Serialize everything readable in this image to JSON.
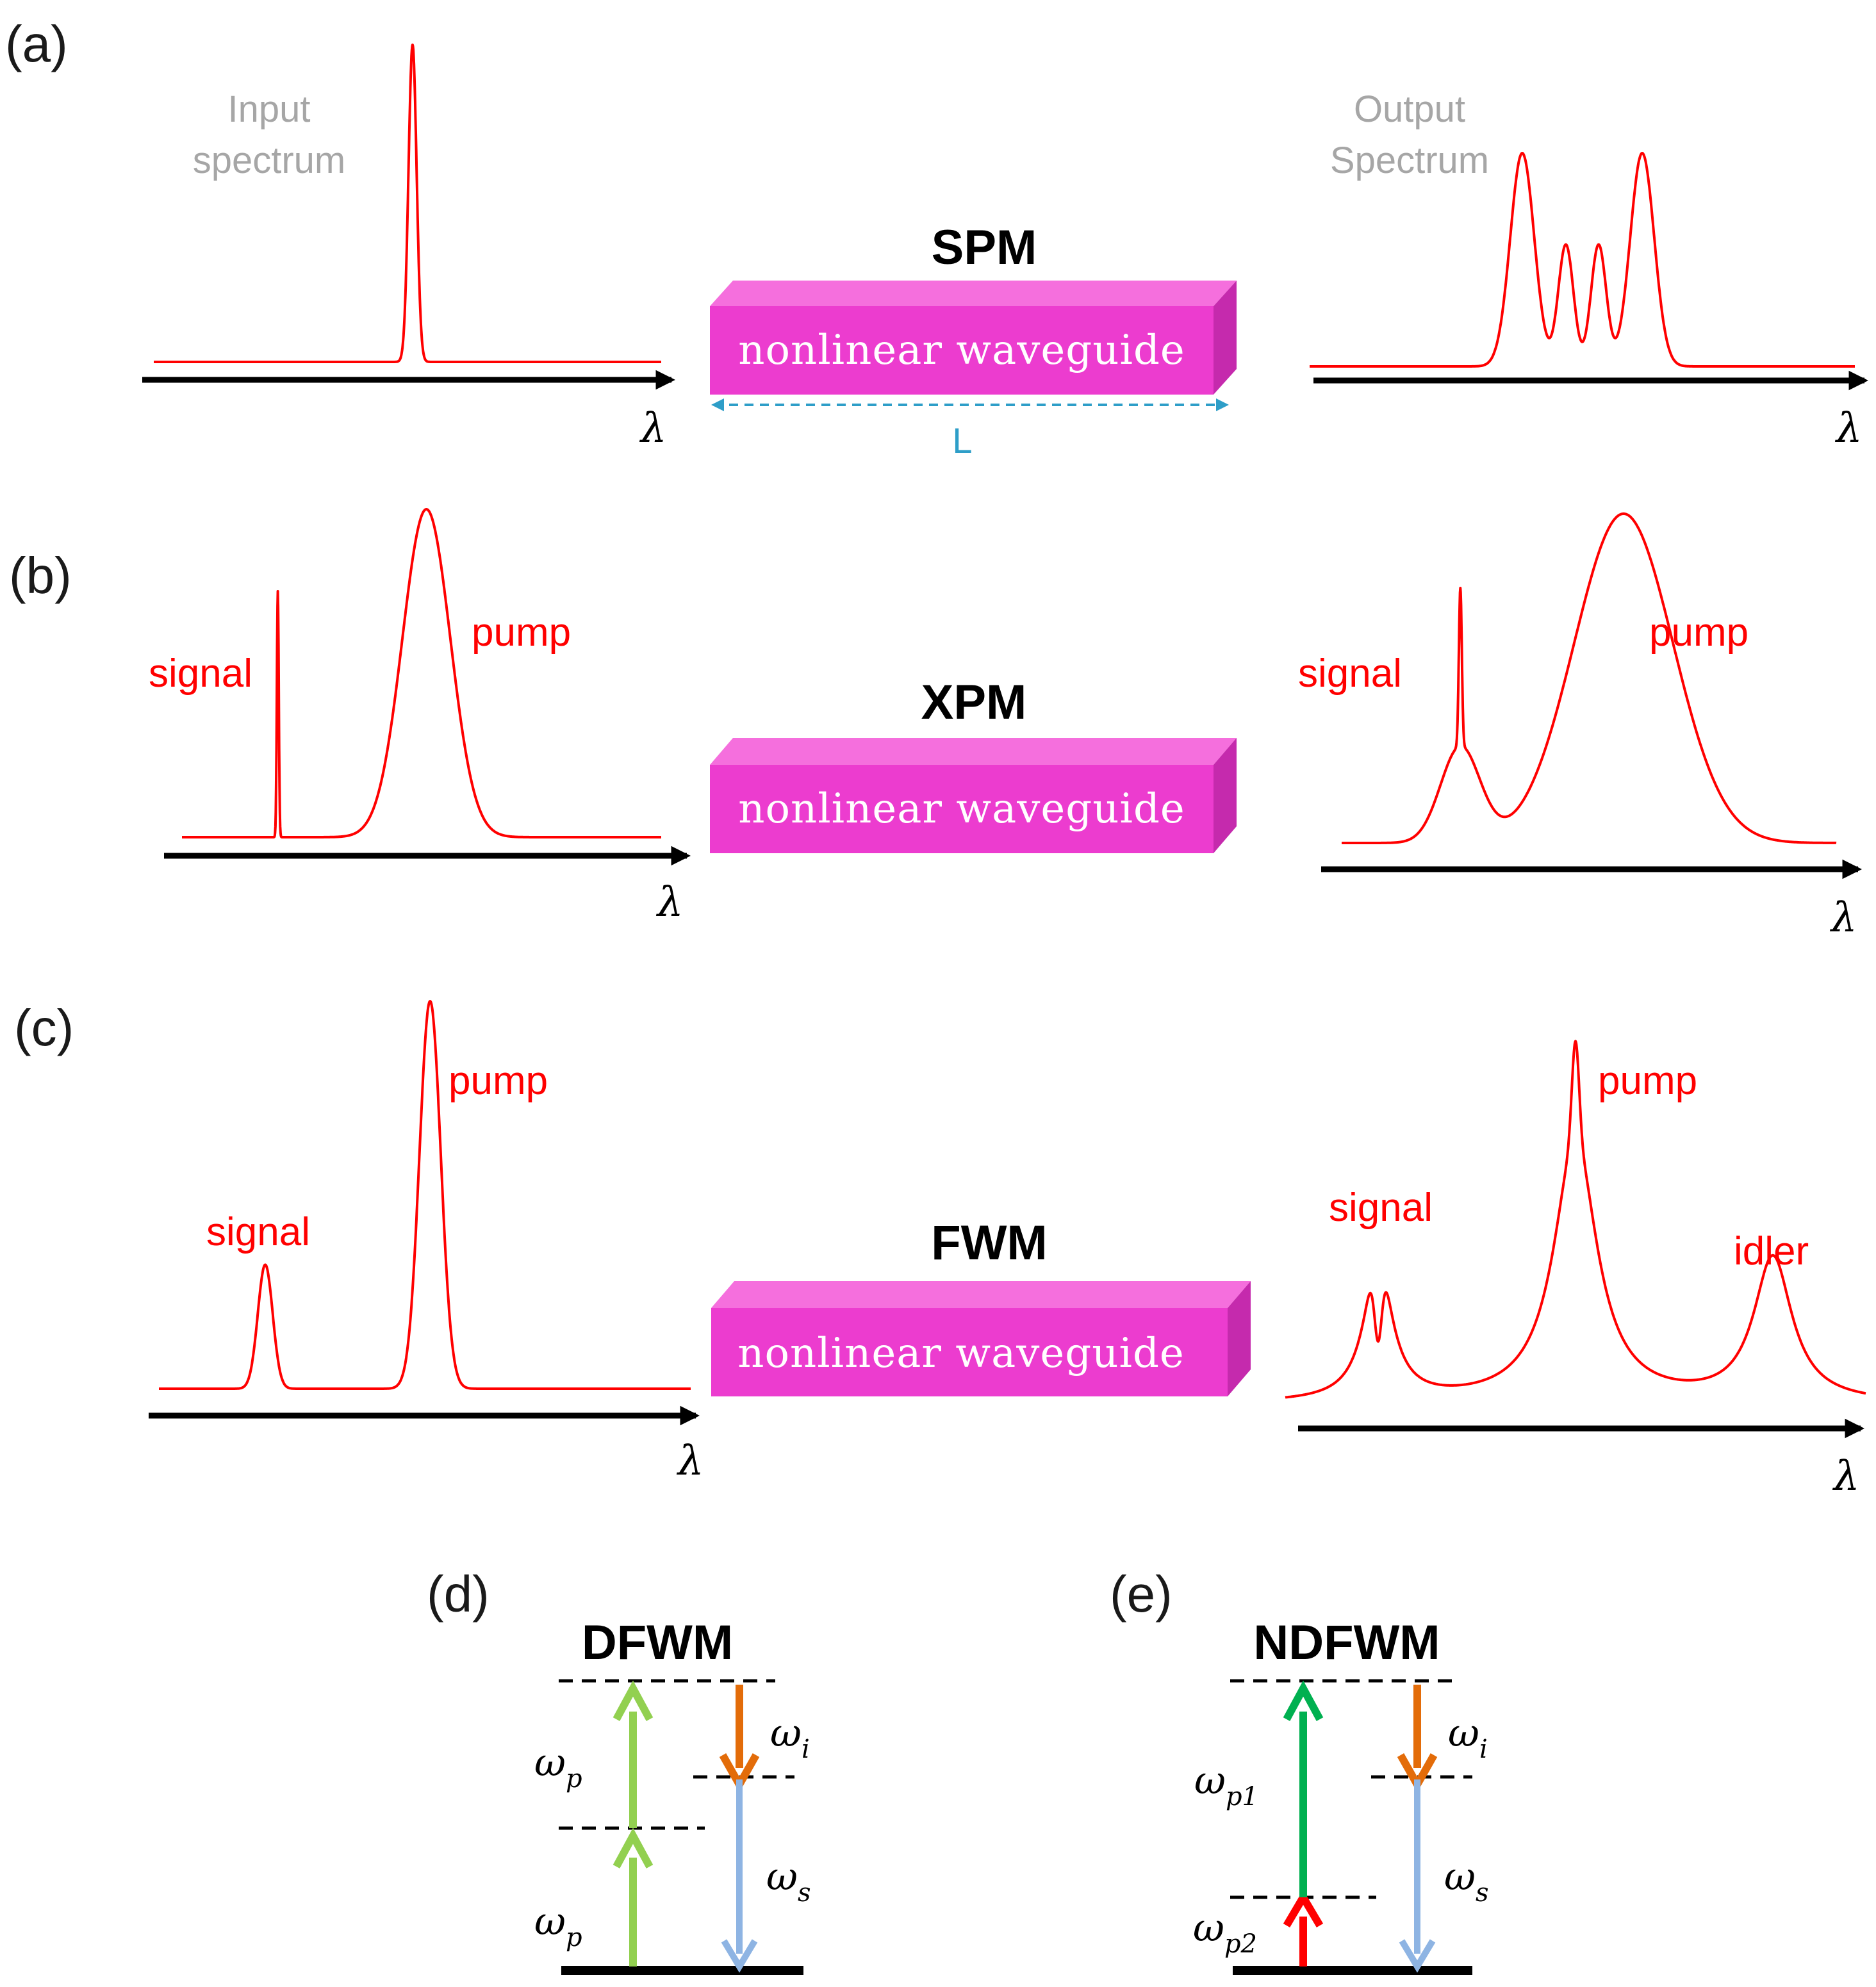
{
  "panels": [
    {
      "label": "(a)",
      "process": "SPM",
      "waveguide_text": "nonlinear  waveguide",
      "length_label": "L",
      "input": {
        "heading_line1": "Input",
        "heading_line2": "spectrum",
        "axis_label": "λ",
        "peaks": [
          {
            "label": "",
            "center": 0.51,
            "height": 1.0,
            "width": 0.008,
            "shape": "gauss"
          }
        ]
      },
      "output": {
        "heading_line1": "Output",
        "heading_line2": "Spectrum",
        "axis_label": "λ",
        "peaks": [
          {
            "label": "",
            "center": 0.39,
            "height": 1.0,
            "width": 0.022,
            "shape": "gauss"
          },
          {
            "label": "",
            "center": 0.47,
            "height": 0.57,
            "width": 0.014,
            "shape": "gauss"
          },
          {
            "label": "",
            "center": 0.53,
            "height": 0.57,
            "width": 0.014,
            "shape": "gauss"
          },
          {
            "label": "",
            "center": 0.61,
            "height": 1.0,
            "width": 0.022,
            "shape": "gauss"
          }
        ]
      }
    },
    {
      "label": "(b)",
      "process": "XPM",
      "waveguide_text": "nonlinear  waveguide",
      "input": {
        "axis_label": "λ",
        "peaks": [
          {
            "label": "signal",
            "center": 0.2,
            "height": 0.75,
            "width": 0.002,
            "shape": "gauss"
          },
          {
            "label": "pump",
            "center": 0.51,
            "height": 1.0,
            "width": 0.05,
            "shape": "gauss"
          }
        ]
      },
      "output": {
        "axis_label": "λ",
        "peaks": [
          {
            "label": "signal",
            "center": 0.24,
            "height": 0.29,
            "width": 0.04,
            "shape": "gauss"
          },
          {
            "label": "",
            "center": 0.24,
            "height": 0.48,
            "width": 0.003,
            "shape": "gauss"
          },
          {
            "label": "pump",
            "center": 0.57,
            "height": 1.0,
            "width": 0.1,
            "shape": "gauss"
          }
        ]
      }
    },
    {
      "label": "(c)",
      "process": "FWM",
      "waveguide_text": "nonlinear  waveguide",
      "input": {
        "axis_label": "λ",
        "peaks": [
          {
            "label": "signal",
            "center": 0.2,
            "height": 0.32,
            "width": 0.014,
            "shape": "gauss"
          },
          {
            "label": "pump",
            "center": 0.51,
            "height": 1.0,
            "width": 0.02,
            "shape": "gauss"
          }
        ]
      },
      "output": {
        "axis_label": "λ",
        "peaks": [
          {
            "label": "signal",
            "center": 0.16,
            "height": 0.4,
            "width": 0.028,
            "shape": "lorentz",
            "dip": true
          },
          {
            "label": "pump",
            "center": 0.5,
            "height": 0.73,
            "width": 0.045,
            "shape": "lorentz"
          },
          {
            "label": "",
            "center": 0.5,
            "height": 0.27,
            "width": 0.006,
            "shape": "gauss"
          },
          {
            "label": "idler",
            "center": 0.84,
            "height": 0.4,
            "width": 0.04,
            "shape": "lorentz"
          }
        ]
      }
    }
  ],
  "energy_diagrams": [
    {
      "label": "(d)",
      "title": "DFWM",
      "pump_labels": [
        {
          "base": "ω",
          "sub": "p"
        },
        {
          "base": "ω",
          "sub": "p"
        }
      ],
      "idler_label": {
        "base": "ω",
        "sub": "i"
      },
      "signal_label": {
        "base": "ω",
        "sub": "s"
      },
      "colors": {
        "pump_lower": "#92d050",
        "pump_upper": "#92d050",
        "idler": "#e36c09",
        "signal": "#8eb4e3"
      }
    },
    {
      "label": "(e)",
      "title": "NDFWM",
      "pump_labels": [
        {
          "base": "ω",
          "sub": "p2"
        },
        {
          "base": "ω",
          "sub": "p1"
        }
      ],
      "idler_label": {
        "base": "ω",
        "sub": "i"
      },
      "signal_label": {
        "base": "ω",
        "sub": "s"
      },
      "colors": {
        "pump_lower": "#ff0000",
        "pump_upper": "#00b050",
        "idler": "#e36c09",
        "signal": "#8eb4e3"
      }
    }
  ],
  "colors": {
    "spectrum": "#ff0000",
    "waveguide_front": "#ec3ccf",
    "waveguide_top": "#f56fdd",
    "waveguide_side": "#c52aad",
    "length_arrow": "#2e9ec8"
  }
}
